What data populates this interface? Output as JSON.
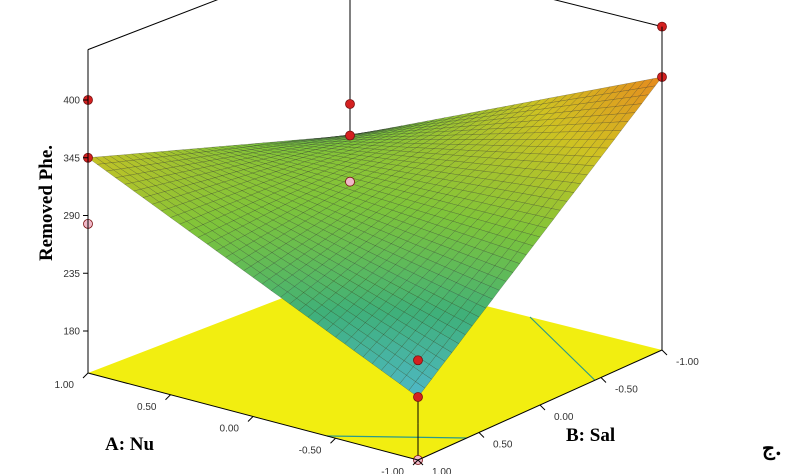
{
  "chart_data": {
    "type": "surface",
    "zlabel": "Removed Phe.",
    "xlabel": "A: Nu",
    "ylabel": "B: Sal",
    "panel_label": "ج.",
    "z_ticks": [
      "180",
      "235",
      "290",
      "345",
      "400"
    ],
    "a_ticks": [
      "1.00",
      "0.50",
      "0.00",
      "-0.50",
      "-1.00"
    ],
    "b_ticks": [
      "1.00",
      "0.50",
      "0.00",
      "-0.50",
      "-1.00"
    ],
    "surface_corners": [
      {
        "A": 1.0,
        "B": 1.0,
        "z": 345
      },
      {
        "A": -1.0,
        "B": -1.0,
        "z": 400
      },
      {
        "A": -1.0,
        "B": 1.0,
        "z": 200
      },
      {
        "A": 1.0,
        "B": -1.0,
        "z": 270
      }
    ],
    "design_points": [
      {
        "A": 1.0,
        "B": 1.0,
        "z": 345
      },
      {
        "A": 1.0,
        "B": 1.0,
        "z": 400
      },
      {
        "A": 1.0,
        "B": 1.0,
        "z": 282
      },
      {
        "A": -1.0,
        "B": -1.0,
        "z": 400
      },
      {
        "A": -1.0,
        "B": -1.0,
        "z": 448
      },
      {
        "A": 1.0,
        "B": -1.0,
        "z": 270
      },
      {
        "A": 1.0,
        "B": -1.0,
        "z": 300
      },
      {
        "A": 1.0,
        "B": -1.0,
        "z": 226
      },
      {
        "A": -1.0,
        "B": 1.0,
        "z": 200
      },
      {
        "A": -1.0,
        "B": 1.0,
        "z": 235
      },
      {
        "A": -1.0,
        "B": 1.0,
        "z": 140
      }
    ],
    "colors": {
      "floor": "#f2ee10",
      "contour": "#2a9a8a",
      "frame": "#000000",
      "point_above": "#d42020",
      "point_below": "#f0b8c8",
      "colormap": [
        "#4fb8c8",
        "#3fb07a",
        "#7ec43a",
        "#cfc222",
        "#e68a1e"
      ]
    }
  }
}
